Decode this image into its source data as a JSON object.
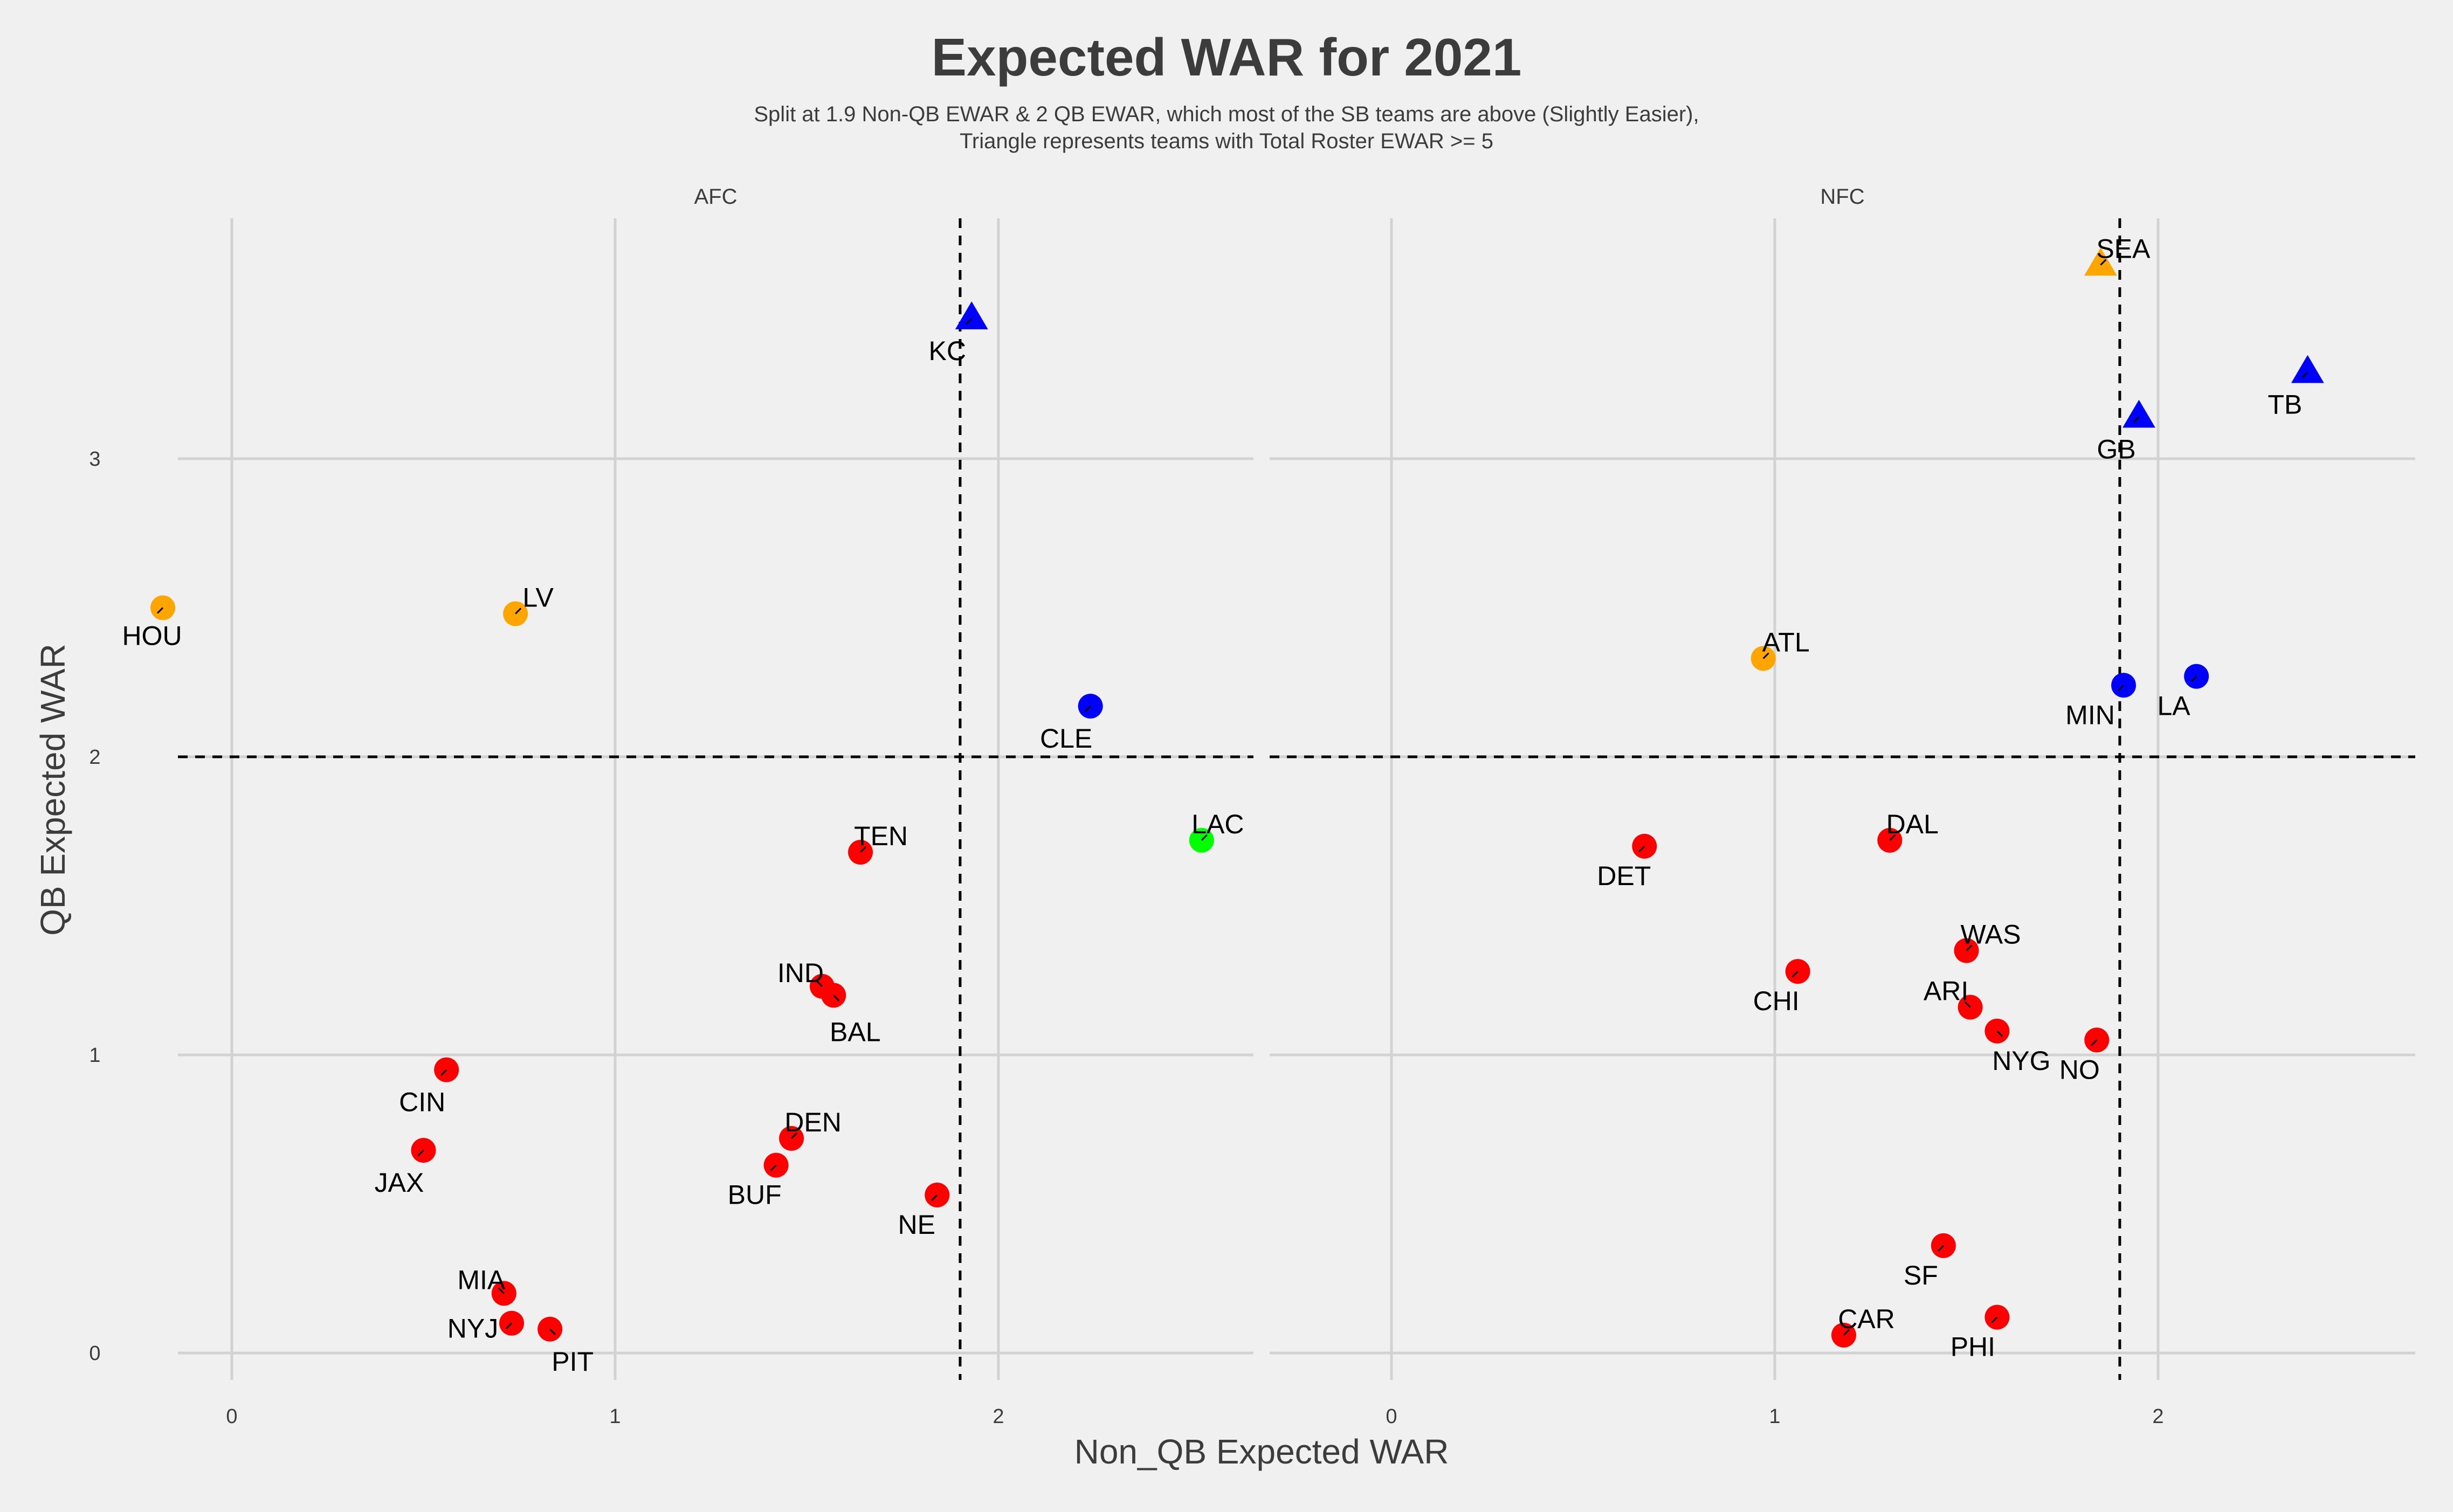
{
  "chart_data": {
    "type": "scatter",
    "title": "Expected WAR for 2021",
    "subtitle": [
      "Split at 1.9 Non-QB EWAR & 2 QB EWAR, which most of the SB teams are above (Slightly Easier),",
      "Triangle represents teams with Total Roster EWAR >= 5"
    ],
    "xlabel": "Non_QB Expected WAR",
    "ylabel": "QB Expected WAR",
    "xlim": [
      -0.3,
      2.67
    ],
    "ylim": [
      -0.06,
      3.81
    ],
    "x_ticks": [
      0,
      1,
      2
    ],
    "y_ticks": [
      0,
      1,
      2,
      3
    ],
    "x_tick_labels": [
      "0",
      "1",
      "2"
    ],
    "y_tick_labels": [
      "0",
      "1",
      "2",
      "3"
    ],
    "vline": 1.9,
    "hline": 2,
    "colors": {
      "red": "#ff0000",
      "orange": "#ffa500",
      "blue": "#0000ff",
      "green": "#00ff00",
      "background": "#f0f0f0",
      "grid": "#d2d2d2",
      "text": "#3c3c3c"
    },
    "facets": [
      {
        "name": "AFC",
        "teams": [
          {
            "team": "KC",
            "x": 1.93,
            "y": 3.47,
            "color": "blue",
            "shape": "triangle"
          },
          {
            "team": "HOU",
            "x": -0.18,
            "y": 2.5,
            "color": "orange",
            "shape": "circle"
          },
          {
            "team": "LV",
            "x": 0.74,
            "y": 2.48,
            "color": "orange",
            "shape": "circle"
          },
          {
            "team": "CLE",
            "x": 2.24,
            "y": 2.17,
            "color": "blue",
            "shape": "circle"
          },
          {
            "team": "LAC",
            "x": 2.53,
            "y": 1.72,
            "color": "green",
            "shape": "circle"
          },
          {
            "team": "TEN",
            "x": 1.64,
            "y": 1.68,
            "color": "red",
            "shape": "circle"
          },
          {
            "team": "IND",
            "x": 1.54,
            "y": 1.23,
            "color": "red",
            "shape": "circle"
          },
          {
            "team": "BAL",
            "x": 1.57,
            "y": 1.2,
            "color": "red",
            "shape": "circle"
          },
          {
            "team": "CIN",
            "x": 0.56,
            "y": 0.95,
            "color": "red",
            "shape": "circle"
          },
          {
            "team": "DEN",
            "x": 1.46,
            "y": 0.72,
            "color": "red",
            "shape": "circle"
          },
          {
            "team": "JAX",
            "x": 0.5,
            "y": 0.68,
            "color": "red",
            "shape": "circle"
          },
          {
            "team": "BUF",
            "x": 1.42,
            "y": 0.63,
            "color": "red",
            "shape": "circle"
          },
          {
            "team": "NE",
            "x": 1.84,
            "y": 0.53,
            "color": "red",
            "shape": "circle"
          },
          {
            "team": "MIA",
            "x": 0.71,
            "y": 0.2,
            "color": "red",
            "shape": "circle"
          },
          {
            "team": "NYJ",
            "x": 0.73,
            "y": 0.1,
            "color": "red",
            "shape": "circle"
          },
          {
            "team": "PIT",
            "x": 0.83,
            "y": 0.08,
            "color": "red",
            "shape": "circle"
          }
        ]
      },
      {
        "name": "NFC",
        "teams": [
          {
            "team": "SEA",
            "x": 1.85,
            "y": 3.65,
            "color": "orange",
            "shape": "triangle"
          },
          {
            "team": "TB",
            "x": 2.39,
            "y": 3.29,
            "color": "blue",
            "shape": "triangle"
          },
          {
            "team": "GB",
            "x": 1.95,
            "y": 3.14,
            "color": "blue",
            "shape": "triangle"
          },
          {
            "team": "ATL",
            "x": 0.97,
            "y": 2.33,
            "color": "orange",
            "shape": "circle"
          },
          {
            "team": "LA",
            "x": 2.1,
            "y": 2.27,
            "color": "blue",
            "shape": "circle"
          },
          {
            "team": "MIN",
            "x": 1.91,
            "y": 2.24,
            "color": "blue",
            "shape": "circle"
          },
          {
            "team": "DAL",
            "x": 1.3,
            "y": 1.72,
            "color": "red",
            "shape": "circle"
          },
          {
            "team": "DET",
            "x": 0.66,
            "y": 1.7,
            "color": "red",
            "shape": "circle"
          },
          {
            "team": "WAS",
            "x": 1.5,
            "y": 1.35,
            "color": "red",
            "shape": "circle"
          },
          {
            "team": "CHI",
            "x": 1.06,
            "y": 1.28,
            "color": "red",
            "shape": "circle"
          },
          {
            "team": "ARI",
            "x": 1.51,
            "y": 1.16,
            "color": "red",
            "shape": "circle"
          },
          {
            "team": "NYG",
            "x": 1.58,
            "y": 1.08,
            "color": "red",
            "shape": "circle"
          },
          {
            "team": "NO",
            "x": 1.84,
            "y": 1.05,
            "color": "red",
            "shape": "circle"
          },
          {
            "team": "SF",
            "x": 1.44,
            "y": 0.36,
            "color": "red",
            "shape": "circle"
          },
          {
            "team": "PHI",
            "x": 1.58,
            "y": 0.12,
            "color": "red",
            "shape": "circle"
          },
          {
            "team": "CAR",
            "x": 1.18,
            "y": 0.06,
            "color": "red",
            "shape": "circle"
          }
        ]
      }
    ]
  }
}
